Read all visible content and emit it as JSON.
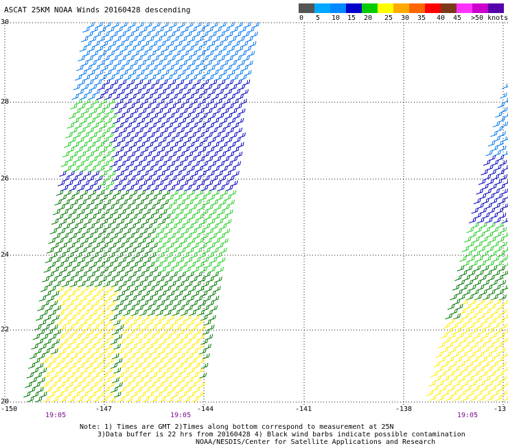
{
  "header": {
    "title": "ASCAT 25KM NOAA Winds 20160428 descending"
  },
  "legend": {
    "colors": [
      "#555555",
      "#00a8ff",
      "#0088ff",
      "#0000cc",
      "#00cc00",
      "#ffff00",
      "#ffaa00",
      "#ff6600",
      "#ff0000",
      "#7a3a1a",
      "#ff33ff",
      "#cc00cc",
      "#5500aa"
    ],
    "labels": [
      "0",
      "5",
      "10",
      "15",
      "20",
      "25",
      "30",
      "35",
      "40",
      "45",
      ">50 knots"
    ]
  },
  "axes": {
    "y_labels": [
      "30",
      "28",
      "26",
      "24",
      "22",
      "20"
    ],
    "x_labels": [
      "-150",
      "-147",
      "-144",
      "-141",
      "-138",
      "-13"
    ]
  },
  "times": [
    "19:05",
    "19:05",
    "19:05"
  ],
  "notes": {
    "line1": "Note: 1) Times are GMT 2)Times along bottom correspond to measurement at 25N",
    "line2": "3)Data buffer is 22 hrs from 20160428 4) Black wind barbs indicate possible contamination",
    "line3": "NOAA/NESDIS/Center for Satellite Applications and Research"
  },
  "swaths": [
    {
      "name": "left-swath",
      "bands": [
        {
          "color": "#0077ee"
        },
        {
          "color": "#0000bb"
        },
        {
          "color": "#22cc22"
        },
        {
          "color": "#007700"
        },
        {
          "color": "#ffee00"
        }
      ]
    },
    {
      "name": "right-swath",
      "bands": [
        {
          "color": "#0077ee"
        },
        {
          "color": "#0000bb"
        },
        {
          "color": "#22cc22"
        },
        {
          "color": "#007700"
        },
        {
          "color": "#ffee00"
        }
      ]
    }
  ]
}
